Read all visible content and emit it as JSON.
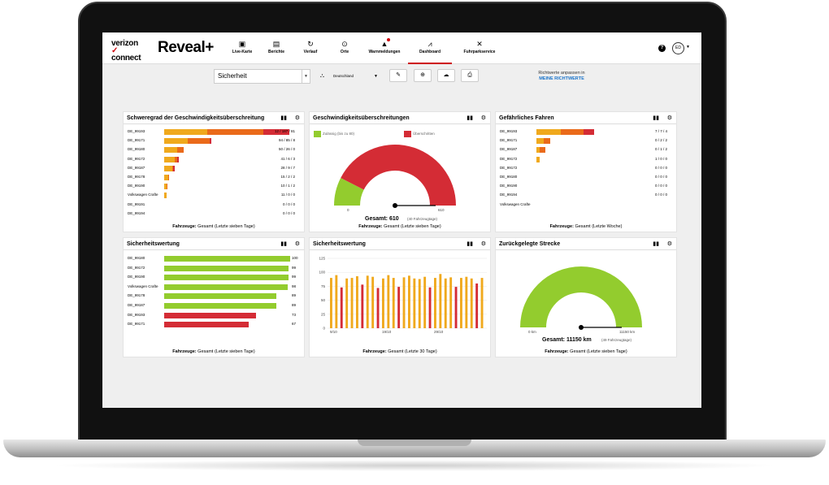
{
  "app": {
    "brand_line1": "verizon",
    "brand_check": "✓",
    "brand_line2": "connect",
    "product": "Reveal+"
  },
  "nav": [
    {
      "label": "Live-Karte",
      "icon": "map-pin-icon"
    },
    {
      "label": "Berichte",
      "icon": "document-icon"
    },
    {
      "label": "Verlauf",
      "icon": "history-icon"
    },
    {
      "label": "Orte",
      "icon": "location-icon"
    },
    {
      "label": "Warnmeldungen",
      "icon": "alert-icon"
    },
    {
      "label": "Dashboard",
      "icon": "dashboard-icon"
    },
    {
      "label": "Fuhrparkservice",
      "icon": "tools-icon"
    }
  ],
  "header": {
    "help": "?",
    "avatar": "ED"
  },
  "toolbar": {
    "dashboard_select": "Sicherheit",
    "org_select": "Deutschland",
    "richtwerte_text": "Richtwerte anpassen in",
    "richtwerte_link": "MEINE RICHTWERTE"
  },
  "colors": {
    "brand_red": "#cd040b",
    "orange_light": "#f0a91d",
    "orange": "#ea6a1a",
    "red": "#d42c35",
    "green": "#93cc2e",
    "link": "#1a73c9"
  },
  "panels": {
    "speeding_severity": {
      "title": "Schweregrad der Geschwindigkeitsüberschreitung",
      "footer_bold": "Fahrzeuge:",
      "footer": "Gesamt (Letzte sieben Tage)",
      "rows": [
        {
          "label": "DE_99193",
          "values": [
            33,
            43,
            20
          ],
          "text": "12 / 187 / 81"
        },
        {
          "label": "DE_99171",
          "values": [
            18,
            17,
            1
          ],
          "text": "94 / 85 / 8"
        },
        {
          "label": "DE_99180",
          "values": [
            10,
            5,
            0
          ],
          "text": "50 / 26 / 0"
        },
        {
          "label": "DE_99172",
          "values": [
            8,
            2,
            1
          ],
          "text": "41 / 6 / 3"
        },
        {
          "label": "DE_99187",
          "values": [
            6,
            1,
            1
          ],
          "text": "28 / 9 / 7"
        },
        {
          "label": "DE_99178",
          "values": [
            3,
            0.5,
            0
          ],
          "text": "15 / 2 / 2"
        },
        {
          "label": "DE_99190",
          "values": [
            2,
            0.3,
            0
          ],
          "text": "10 / 1 / 2"
        },
        {
          "label": "Volkswagen Crafte",
          "values": [
            2,
            0,
            0
          ],
          "text": "11 / 0 / 0"
        },
        {
          "label": "DE_99191",
          "values": [
            0,
            0,
            0
          ],
          "text": "0 / 0 / 0"
        },
        {
          "label": "DE_99194",
          "values": [
            0,
            0,
            0
          ],
          "text": "0 / 0 / 0"
        }
      ]
    },
    "speeding": {
      "title": "Geschwindigkeitsüberschreitungen",
      "legend_allowed": "Zulässig (bis zu 80)",
      "legend_exceeded": "Überschritten",
      "min": "0",
      "max": "610",
      "total_label": "Gesamt: 610",
      "total_sub": "(40 Fahrzeugtage)",
      "fraction_allowed": 0.15,
      "footer_bold": "Fahrzeuge:",
      "footer": "Gesamt (Letzte sieben Tage)"
    },
    "dangerous_driving": {
      "title": "Gefährliches Fahren",
      "footer_bold": "Fahrzeuge:",
      "footer": "Gesamt (Letzte Woche)",
      "rows": [
        {
          "label": "DE_99193",
          "values": [
            7,
            6.5,
            3
          ],
          "text": "7 / 7 / 4"
        },
        {
          "label": "DE_99171",
          "values": [
            2,
            2,
            0
          ],
          "text": "0 / 2 / 2"
        },
        {
          "label": "DE_99187",
          "values": [
            1,
            1.5,
            0
          ],
          "text": "0 / 1 / 2"
        },
        {
          "label": "DE_99172",
          "values": [
            1,
            0,
            0
          ],
          "text": "1 / 0 / 0"
        },
        {
          "label": "DE_99172",
          "values": [
            0,
            0,
            0
          ],
          "text": "0 / 0 / 0"
        },
        {
          "label": "DE_99180",
          "values": [
            0,
            0,
            0
          ],
          "text": "0 / 0 / 0"
        },
        {
          "label": "DE_99190",
          "values": [
            0,
            0,
            0
          ],
          "text": "0 / 0 / 0"
        },
        {
          "label": "DE_99194",
          "values": [
            0,
            0,
            0
          ],
          "text": "0 / 0 / 0"
        },
        {
          "label": "Volkswagen Crafte",
          "values": [
            0,
            0,
            0
          ],
          "text": ""
        }
      ]
    },
    "safety_rating": {
      "title": "Sicherheitswertung",
      "footer_bold": "Fahrzeuge:",
      "footer": "Gesamt (Letzte sieben Tage)",
      "rows": [
        {
          "label": "DE_99180",
          "value": 100,
          "color": "green"
        },
        {
          "label": "DE_99172",
          "value": 99,
          "color": "green"
        },
        {
          "label": "DE_99190",
          "value": 99,
          "color": "green"
        },
        {
          "label": "Volkswagen Crafte",
          "value": 98,
          "color": "green"
        },
        {
          "label": "DE_99178",
          "value": 89,
          "color": "green"
        },
        {
          "label": "DE_99187",
          "value": 89,
          "color": "green"
        },
        {
          "label": "DE_99193",
          "value": 73,
          "color": "red"
        },
        {
          "label": "DE_99171",
          "value": 67,
          "color": "red"
        }
      ]
    },
    "safety_rating_trend": {
      "title": "Sicherheitswertung",
      "footer_bold": "Fahrzeuge:",
      "footer": "Gesamt (Letzte 30 Tage)"
    },
    "distance": {
      "title": "Zurückgelegte Strecke",
      "min": "0 km",
      "max": "11150 km",
      "total_label": "Gesamt: 11150 km",
      "total_sub": "(49 Fahrzeugtage)",
      "fraction": 1.0,
      "footer_bold": "Fahrzeuge:",
      "footer": "Gesamt (Letzte sieben Tage)"
    }
  },
  "chart_data": [
    {
      "type": "bar",
      "title": "Sicherheitswertung",
      "orientation": "vertical",
      "ylim": [
        0,
        125
      ],
      "y_ticks": [
        "0",
        "25",
        "50",
        "75",
        "100",
        "125"
      ],
      "x_tick_labels": [
        "9/10",
        "19/10",
        "29/10"
      ],
      "values": [
        90,
        95,
        73,
        89,
        90,
        93,
        78,
        94,
        92,
        72,
        89,
        95,
        90,
        74,
        91,
        94,
        89,
        88,
        92,
        73,
        90,
        97,
        89,
        91,
        74,
        90,
        92,
        89,
        80,
        90
      ],
      "bar_colors": [
        "orange",
        "orange",
        "red",
        "orange",
        "orange",
        "orange",
        "red",
        "orange",
        "orange",
        "red",
        "orange",
        "orange",
        "orange",
        "red",
        "orange",
        "orange",
        "orange",
        "orange",
        "orange",
        "red",
        "orange",
        "orange",
        "orange",
        "orange",
        "red",
        "orange",
        "orange",
        "orange",
        "red",
        "orange"
      ]
    }
  ]
}
